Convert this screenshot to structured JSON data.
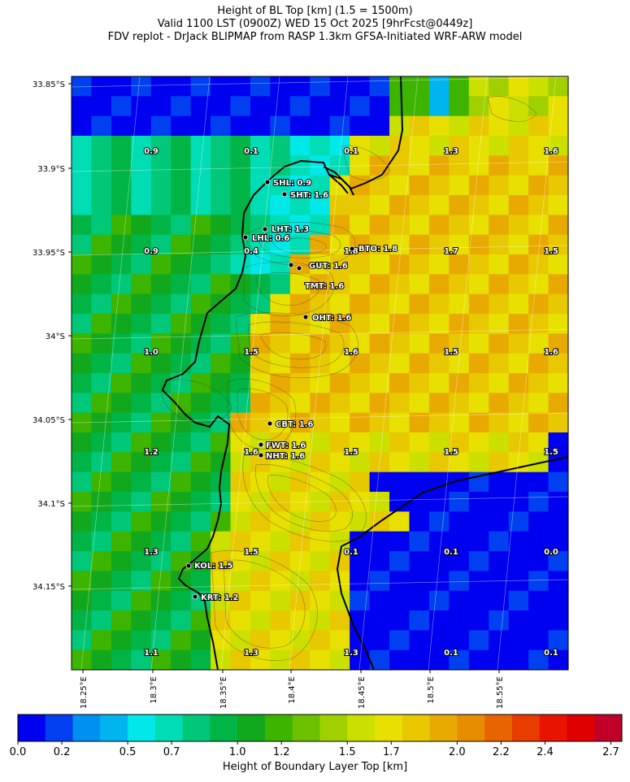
{
  "title": {
    "line1": "Height of BL Top [km] (1.5 = 1500m)",
    "line2": "Valid 1100 LST (0900Z) WED 15 Oct 2025 [9hrFcst@0449z]",
    "line3": "FDV replot - DrJack BLIPMAP from RASP 1.3km GFSA-Initiated WRF-ARW model"
  },
  "lat_ticks": [
    "33.85°S",
    "33.9°S",
    "33.95°S",
    "34°S",
    "34.05°S",
    "34.1°S",
    "34.15°S"
  ],
  "lon_ticks": [
    "18.25°E",
    "18.3°E",
    "18.35°E",
    "18.4°E",
    "18.45°E",
    "18.5°E",
    "18.55°E"
  ],
  "colorbar": {
    "label": "Height of Boundary Layer Top [km]",
    "ticks": [
      "0.0",
      "0.2",
      "0.5",
      "0.7",
      "1.0",
      "1.2",
      "1.5",
      "1.7",
      "2.0",
      "2.2",
      "2.4",
      "2.7"
    ],
    "colors": [
      "#0000f0",
      "#0040f0",
      "#0090f0",
      "#00b4f0",
      "#00e8e8",
      "#00dcb4",
      "#00c878",
      "#00b446",
      "#12a81e",
      "#3cb400",
      "#6cc000",
      "#a0d000",
      "#cce000",
      "#e8e000",
      "#e8c800",
      "#e8aa00",
      "#e88c00",
      "#e86400",
      "#e83c00",
      "#e81400",
      "#e00000",
      "#c00028"
    ]
  },
  "grid_values": [
    [
      "0.9",
      "0.1",
      "0.1",
      "1.3",
      "1.6"
    ],
    [
      "0.9",
      "0.4",
      "1.8",
      "1.7",
      "1.5"
    ],
    [
      "1.0",
      "1.5",
      "1.6",
      "1.5",
      "1.6"
    ],
    [
      "1.2",
      "1.6",
      "1.5",
      "1.5",
      "1.5"
    ],
    [
      "1.3",
      "1.5",
      "0.1",
      "0.1",
      "0.0"
    ],
    [
      "1.1",
      "1.3",
      "1.3",
      "0.1",
      "0.1"
    ]
  ],
  "sites": [
    {
      "label": "SHL: 0.9"
    },
    {
      "label": "SHT: 1.6"
    },
    {
      "label": "LHT: 1.3"
    },
    {
      "label": "LHL: 0.6"
    },
    {
      "label": "BTO: 1.8"
    },
    {
      "label": "GUT: 1.6"
    },
    {
      "label": "TMT: 1.6"
    },
    {
      "label": "OHT: 1.6"
    },
    {
      "label": "CBT: 1.6"
    },
    {
      "label": "FWT: 1.6"
    },
    {
      "label": "NHT: 1.6"
    },
    {
      "label": "KOL: 1.5"
    },
    {
      "label": "KRT: 1.2"
    }
  ]
}
